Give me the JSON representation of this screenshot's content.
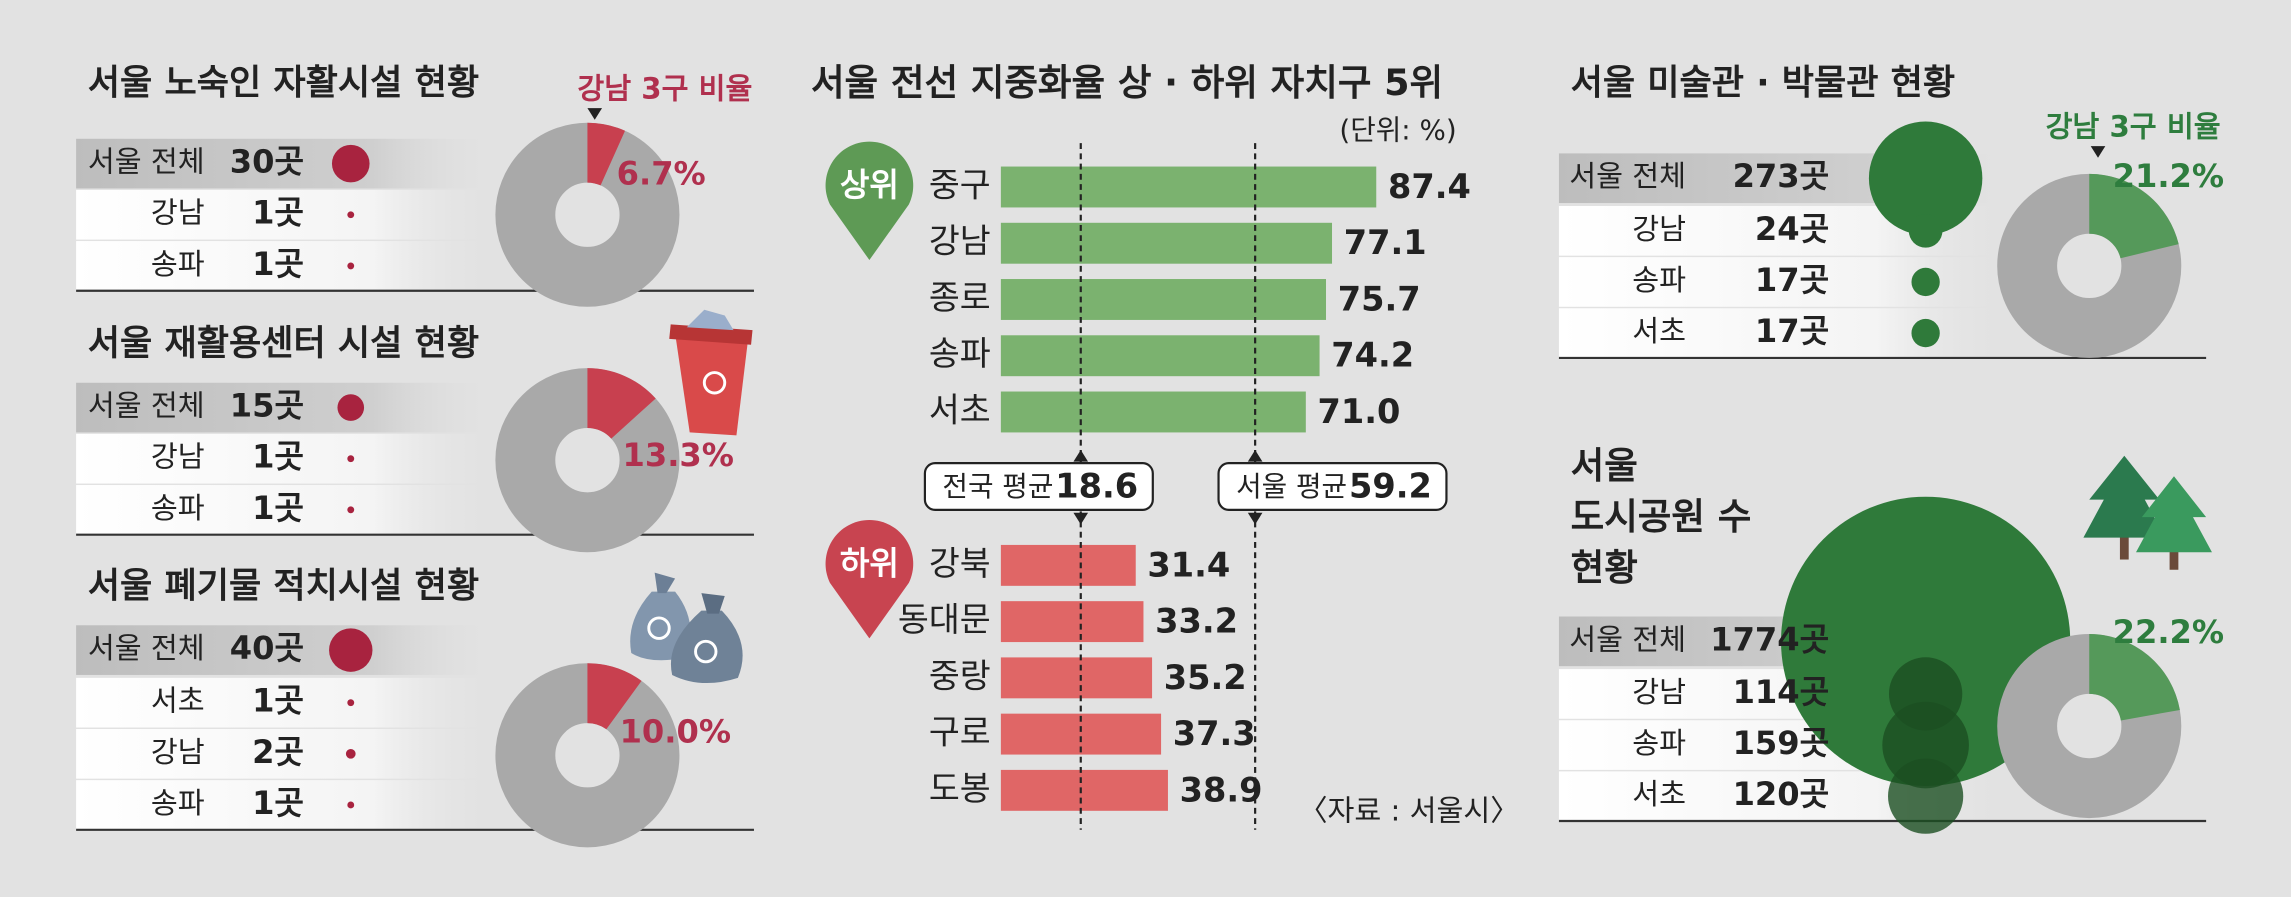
{
  "chart_data": [
    {
      "type": "facility",
      "title": "서울 노숙인 자활시설 현황",
      "categories": [
        "서울 전체",
        "강남",
        "송파"
      ],
      "values": [
        30,
        1,
        1
      ],
      "value_labels": [
        "30곳",
        "1곳",
        "1곳"
      ],
      "color": "#a8233f",
      "share": 6.7,
      "share_label": "6.7%",
      "share_note": "강남 3구 비율",
      "share_color": "#c8404f"
    },
    {
      "type": "facility",
      "title": "서울 재활용센터 시설 현황",
      "categories": [
        "서울 전체",
        "강남",
        "송파"
      ],
      "values": [
        15,
        1,
        1
      ],
      "value_labels": [
        "15곳",
        "1곳",
        "1곳"
      ],
      "color": "#a8233f",
      "share": 13.3,
      "share_label": "13.3%",
      "share_color": "#c8404f"
    },
    {
      "type": "facility",
      "title": "서울 폐기물 적치시설 현황",
      "categories": [
        "서울 전체",
        "서초",
        "강남",
        "송파"
      ],
      "values": [
        40,
        1,
        2,
        1
      ],
      "value_labels": [
        "40곳",
        "1곳",
        "2곳",
        "1곳"
      ],
      "color": "#a8233f",
      "share": 10.0,
      "share_label": "10.0%",
      "share_color": "#c8404f"
    },
    {
      "type": "bar",
      "title": "서울 전선 지중화율 상 · 하위 자치구 5위",
      "unit": "(단위: %)",
      "xlim": [
        0,
        100
      ],
      "groups": [
        {
          "name": "상위",
          "color": "#7bb26f",
          "badge_color": "#5e9a55",
          "categories": [
            "중구",
            "강남",
            "종로",
            "송파",
            "서초"
          ],
          "values": [
            87.4,
            77.1,
            75.7,
            74.2,
            71.0
          ],
          "value_labels": [
            "87.4",
            "77.1",
            "75.7",
            "74.2",
            "71.0"
          ]
        },
        {
          "name": "하위",
          "color": "#e06666",
          "badge_color": "#c84450",
          "categories": [
            "강북",
            "동대문",
            "중랑",
            "구로",
            "도봉"
          ],
          "values": [
            31.4,
            33.2,
            35.2,
            37.3,
            38.9
          ]
        }
      ],
      "reference_lines": [
        {
          "label": "전국 평균",
          "value": 18.6
        },
        {
          "label": "서울 평균",
          "value": 59.2
        }
      ],
      "source": "〈자료 : 서울시〉"
    },
    {
      "type": "facility",
      "title": "서울 미술관 · 박물관 현황",
      "categories": [
        "서울 전체",
        "강남",
        "송파",
        "서초"
      ],
      "values": [
        273,
        24,
        17,
        17
      ],
      "value_labels": [
        "273곳",
        "24곳",
        "17곳",
        "17곳"
      ],
      "color": "#2f7a3a",
      "share": 21.2,
      "share_label": "21.2%",
      "share_note": "강남 3구 비율",
      "share_color": "#55995a"
    },
    {
      "type": "facility",
      "title_lines": [
        "서울",
        "도시공원 수",
        "현황"
      ],
      "categories": [
        "서울 전체",
        "강남",
        "송파",
        "서초"
      ],
      "values": [
        1774,
        114,
        159,
        120
      ],
      "value_labels": [
        "1774곳",
        "114곳",
        "159곳",
        "120곳"
      ],
      "color": "#2f7a3a",
      "share": 22.2,
      "share_label": "22.2%",
      "share_color": "#55995a"
    }
  ]
}
